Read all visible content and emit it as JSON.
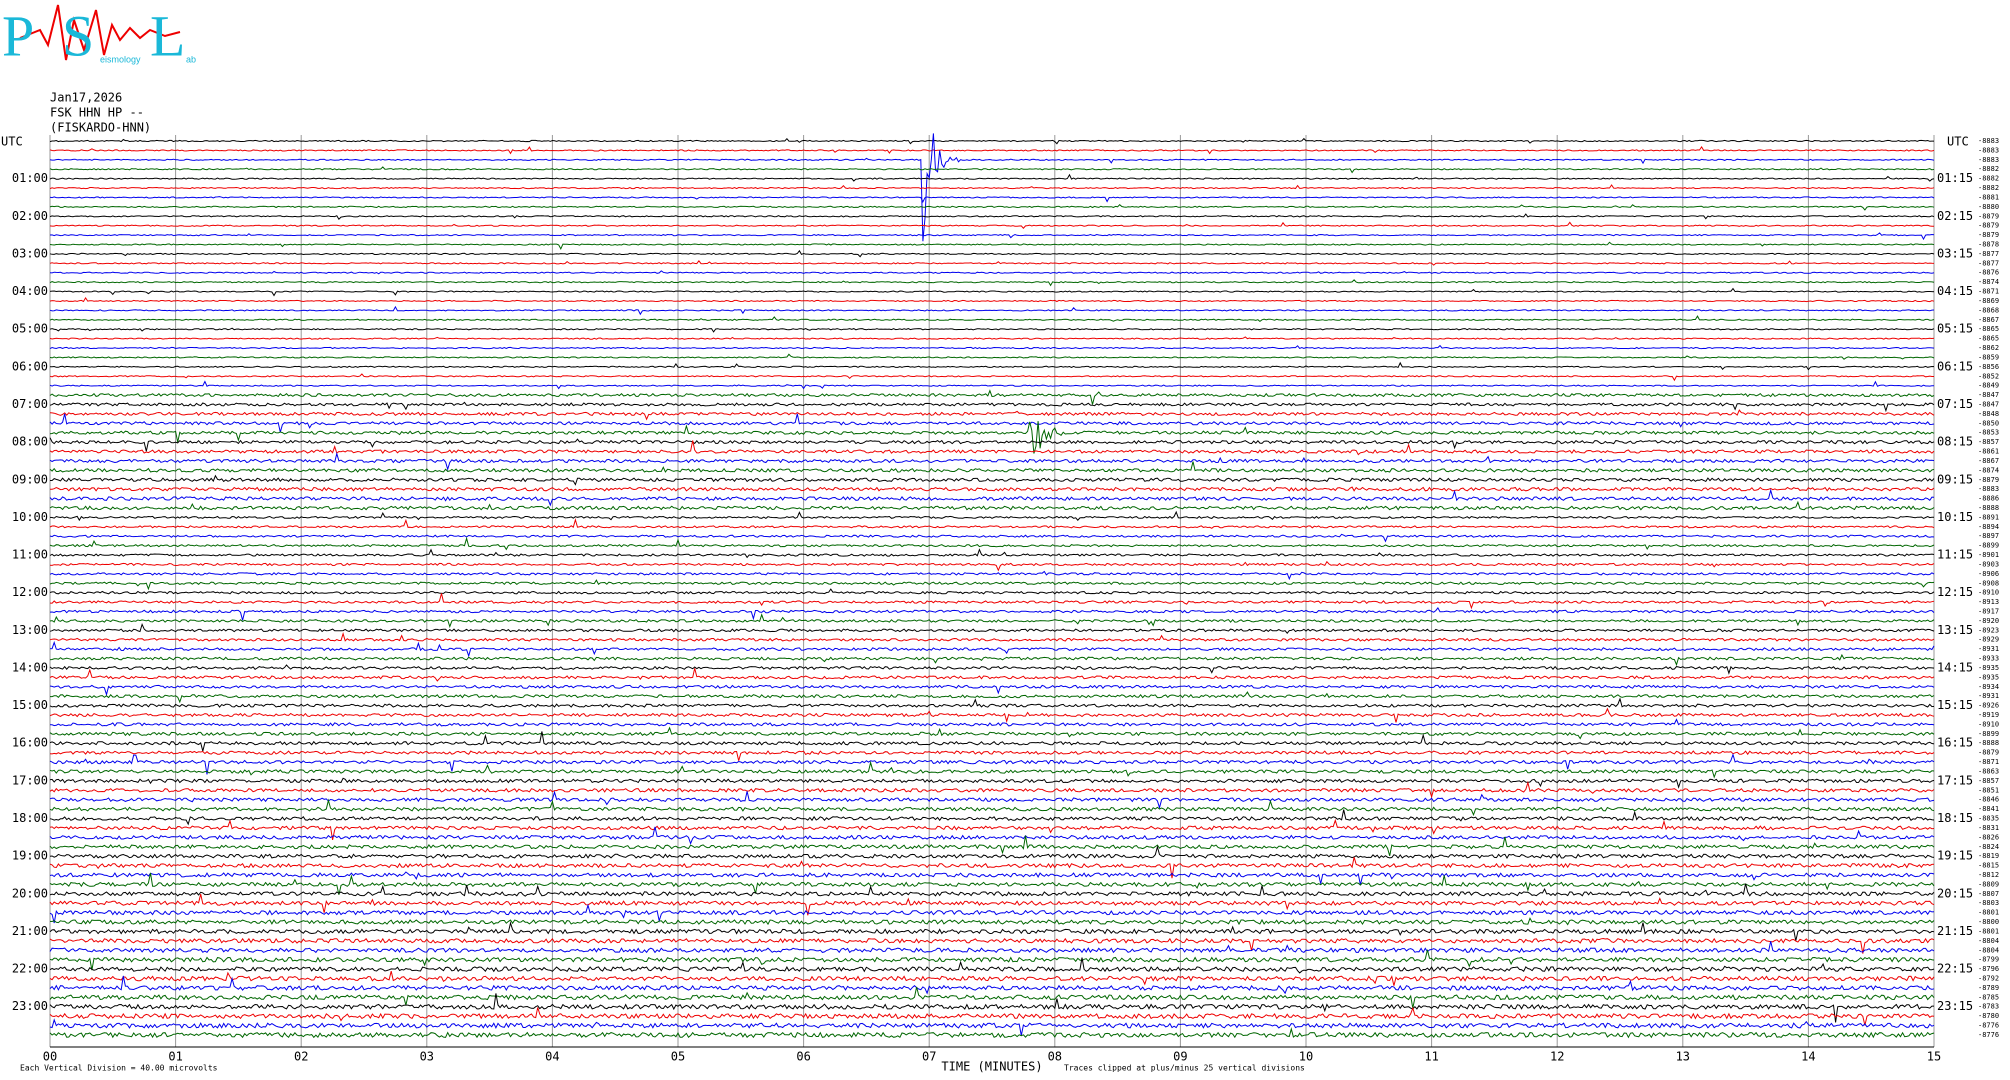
{
  "logo": {
    "letters": [
      "P",
      "S",
      "L"
    ],
    "words": [
      "eismology",
      "ab"
    ]
  },
  "header": {
    "date": "Jan17,2026",
    "station": "FSK HHN HP --",
    "name": "(FISKARDO-HNN)"
  },
  "left_axis": {
    "title": "UTC",
    "labels": [
      "01:00",
      "02:00",
      "03:00",
      "04:00",
      "05:00",
      "06:00",
      "07:00",
      "08:00",
      "09:00",
      "10:00",
      "11:00",
      "12:00",
      "13:00",
      "14:00",
      "15:00",
      "16:00",
      "17:00",
      "18:00",
      "19:00",
      "20:00",
      "21:00",
      "22:00",
      "23:00"
    ]
  },
  "right_axis": {
    "title": "UTC",
    "labels": [
      "01:15",
      "02:15",
      "03:15",
      "04:15",
      "05:15",
      "06:15",
      "07:15",
      "08:15",
      "09:15",
      "10:15",
      "11:15",
      "12:15",
      "13:15",
      "14:15",
      "15:15",
      "16:15",
      "17:15",
      "18:15",
      "19:15",
      "20:15",
      "21:15",
      "22:15",
      "23:15"
    ]
  },
  "trace_offsets": [
    -8883,
    -8883,
    -8883,
    -8882,
    -8882,
    -8882,
    -8881,
    -8880,
    -8879,
    -8879,
    -8879,
    -8878,
    -8877,
    -8877,
    -8876,
    -8874,
    -8871,
    -8869,
    -8868,
    -8867,
    -8865,
    -8865,
    -8862,
    -8859,
    -8856,
    -8852,
    -8849,
    -8847,
    -8847,
    -8848,
    -8850,
    -8853,
    -8857,
    -8861,
    -8867,
    -8874,
    -8879,
    -8883,
    -8886,
    -8888,
    -8891,
    -8894,
    -8897,
    -8899,
    -8901,
    -8903,
    -8906,
    -8908,
    -8910,
    -8913,
    -8917,
    -8920,
    -8923,
    -8929,
    -8931,
    -8933,
    -8935,
    -8935,
    -8934,
    -8931,
    -8926,
    -8919,
    -8910,
    -8899,
    -8888,
    -8879,
    -8871,
    -8863,
    -8857,
    -8851,
    -8846,
    -8841,
    -8835,
    -8831,
    -8826,
    -8824,
    -8819,
    -8815,
    -8812,
    -8809,
    -8807,
    -8803,
    -8801,
    -8800,
    -8801,
    -8804,
    -8804,
    -8799,
    -8796,
    -8792,
    -8789,
    -8785,
    -8783,
    -8780,
    -8776,
    -8776
  ],
  "trace_colors": [
    "#000000",
    "#ee0000",
    "#0000ee",
    "#006600"
  ],
  "x_axis": {
    "title": "TIME (MINUTES)",
    "ticks": [
      "00",
      "01",
      "02",
      "03",
      "04",
      "05",
      "06",
      "07",
      "08",
      "09",
      "10",
      "11",
      "12",
      "13",
      "14",
      "15"
    ]
  },
  "footer": {
    "scale": "Each Vertical Division =   40.00 microvolts",
    "clip": "Traces clipped at plus/minus 25 vertical divisions"
  }
}
